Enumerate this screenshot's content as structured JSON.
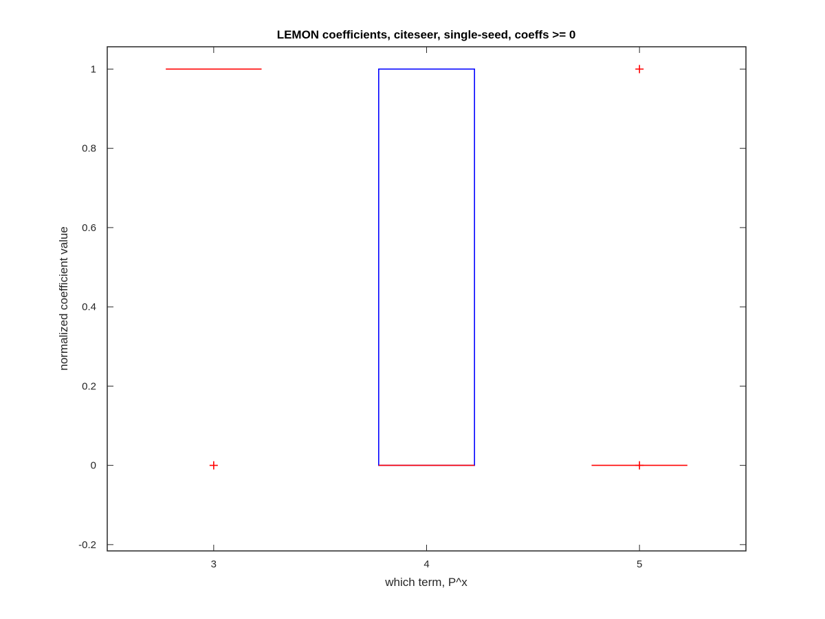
{
  "chart_data": {
    "type": "box",
    "title": "LEMON coefficients, citeseer, single-seed, coeffs >= 0",
    "xlabel": "which term, P^x",
    "ylabel": "normalized coefficient value",
    "categories": [
      "3",
      "4",
      "5"
    ],
    "xlim": [
      2.5,
      5.5
    ],
    "ylim": [
      -0.2159,
      1.0563
    ],
    "yticks": [
      -0.2,
      0,
      0.2,
      0.4,
      0.6,
      0.8,
      1
    ],
    "ytick_labels": [
      "-0.2",
      "0",
      "0.2",
      "0.4",
      "0.6",
      "0.8",
      "1"
    ],
    "boxes": [
      {
        "category": "3",
        "median": 1,
        "q1": 1,
        "q3": 1,
        "whisker_low": 1,
        "whisker_high": 1,
        "outliers": [
          0
        ]
      },
      {
        "category": "4",
        "median": 0,
        "q1": 0,
        "q3": 1,
        "whisker_low": 0,
        "whisker_high": 1,
        "outliers": []
      },
      {
        "category": "5",
        "median": 0,
        "q1": 0,
        "q3": 0,
        "whisker_low": 0,
        "whisker_high": 0,
        "outliers": [
          1,
          0
        ]
      }
    ],
    "box_color": "#0000ff",
    "median_color": "#ff0000",
    "outlier_color": "#ff0000",
    "axis_color": "#262626",
    "grid": false,
    "legend": false
  }
}
